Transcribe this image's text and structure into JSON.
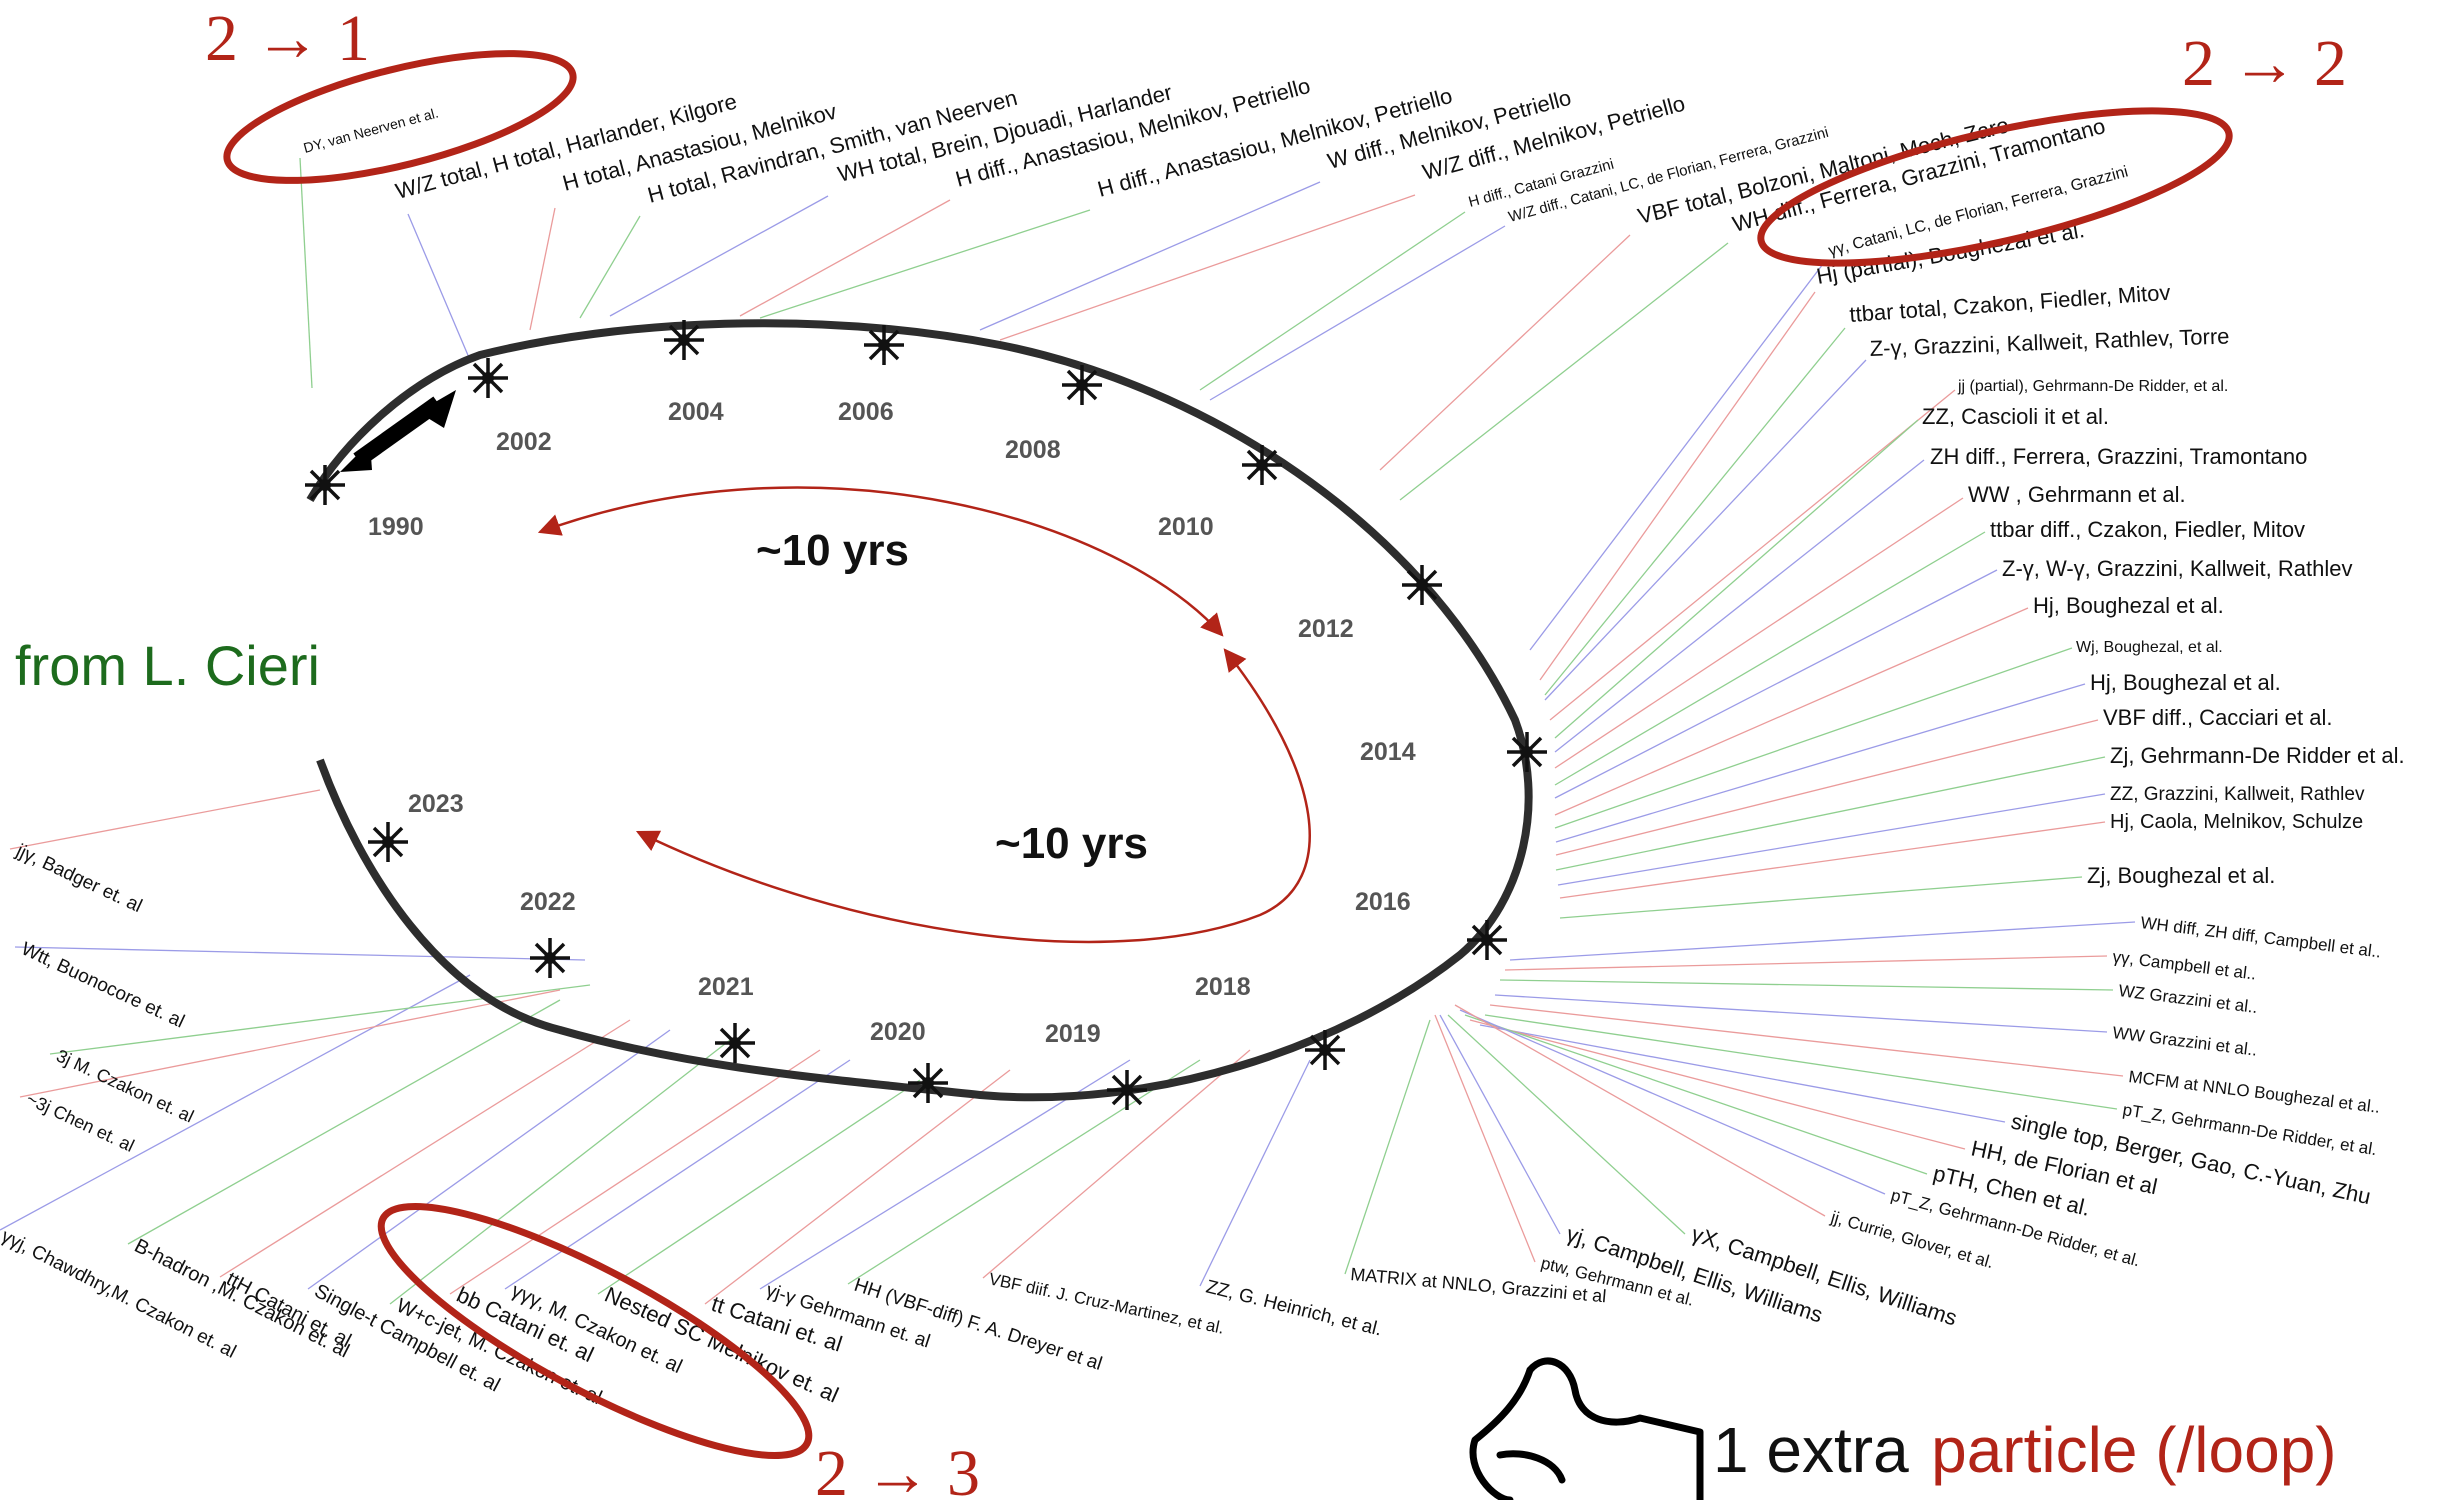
{
  "credit": "from L. Cieri",
  "span_label": "~10 yrs",
  "footnote": {
    "black": "1 extra",
    "red": "particle (/loop)"
  },
  "transitions": [
    "2 → 1",
    "2 → 2",
    "2 → 3"
  ],
  "years": [
    "1990",
    "2002",
    "2004",
    "2006",
    "2008",
    "2010",
    "2012",
    "2014",
    "2016",
    "2018",
    "2019",
    "2020",
    "2021",
    "2022",
    "2023"
  ],
  "calculations": [
    "DY, van Neerven et al.",
    "W/Z total, H total,  Harlander, Kilgore",
    "H total,  Anastasiou, Melnikov",
    "H total,  Ravindran, Smith, van Neerven",
    "WH total,  Brein, Djouadi, Harlander",
    "H diff.,  Anastasiou, Melnikov, Petriello",
    "H diff.,  Anastasiou, Melnikov, Petriello",
    "W diff.,  Melnikov, Petriello",
    "W/Z diff.,  Melnikov, Petriello",
    "H diff., Catani Grazzini",
    "W/Z diff., Catani, LC, de Florian, Ferrera, Grazzini",
    "VBF total,  Bolzoni, Maltoni, Moch, Zaro",
    "WH diff.,  Ferrera, Grazzini, Tramontano",
    "γγ, Catani, LC, de Florian, Ferrera, Grazzini",
    "Hj (partial),  Boughezal et al.",
    "ttbar total,  Czakon, Fiedler, Mitov",
    "Z-γ,  Grazzini, Kallweit, Rathlev, Torre",
    "jj (partial), Gehrmann-De Ridder, et al.",
    "ZZ,  Cascioli it et al.",
    "ZH diff.,  Ferrera, Grazzini, Tramontano",
    "WW ,  Gehrmann et al.",
    "ttbar diff.,  Czakon, Fiedler, Mitov",
    "Z-γ, W-γ,  Grazzini, Kallweit, Rathlev",
    "Hj,  Boughezal et al.",
    "Wj, Boughezal, et al.",
    "Hj,  Boughezal et al.",
    "VBF diff.,  Cacciari et al.",
    "Zj,  Gehrmann-De Ridder et al.",
    "ZZ,  Grazzini, Kallweit, Rathlev",
    "Hj,  Caola, Melnikov, Schulze",
    "Zj,  Boughezal et al.",
    "WH diff, ZH diff, Campbell et al..",
    "γγ, Campbell et al..",
    "WZ Grazzini et al..",
    "WW Grazzini et al..",
    "MCFM at NNLO  Boughezal et al..",
    "pT_Z, Gehrmann-De Ridder, et al.",
    "single top,  Berger, Gao, C.-Yuan, Zhu",
    "HH,  de Florian et al",
    "pTH,  Chen et al.",
    "pT_Z, Gehrmann-De Ridder, et al.",
    "jj, Currie, Glover, et al.",
    "γX,  Campbell, Ellis, Williams",
    "γj,  Campbell, Ellis, Williams",
    "ptw, Gehrmann et al.",
    "MATRIX at NNLO, Grazzini et al",
    "ZZ, G. Heinrich, et al.",
    "VBF diif. J. Cruz-Martinez, et al.",
    "HH (VBF-diff) F. A. Dreyer et al",
    "γj-γ Gehrmann et. al",
    "tt Catani  et. al",
    "Nested SC Melnikov et. al",
    "γγγ, M. Czakon et. al",
    "bb Catani  et. al",
    "W+c-jet, M. Czakon et. al",
    "Single-t Campbell et. al",
    "ttH Catani  et. al",
    "B-hadron ,M. Czakon et. al",
    "γγj, Chawdhry,M. Czakon et. al",
    "~3j Chen et. al",
    "3j M. Czakon et. al",
    "Wtt, Buonocore et. al",
    "jjγ, Badger et. al"
  ]
}
